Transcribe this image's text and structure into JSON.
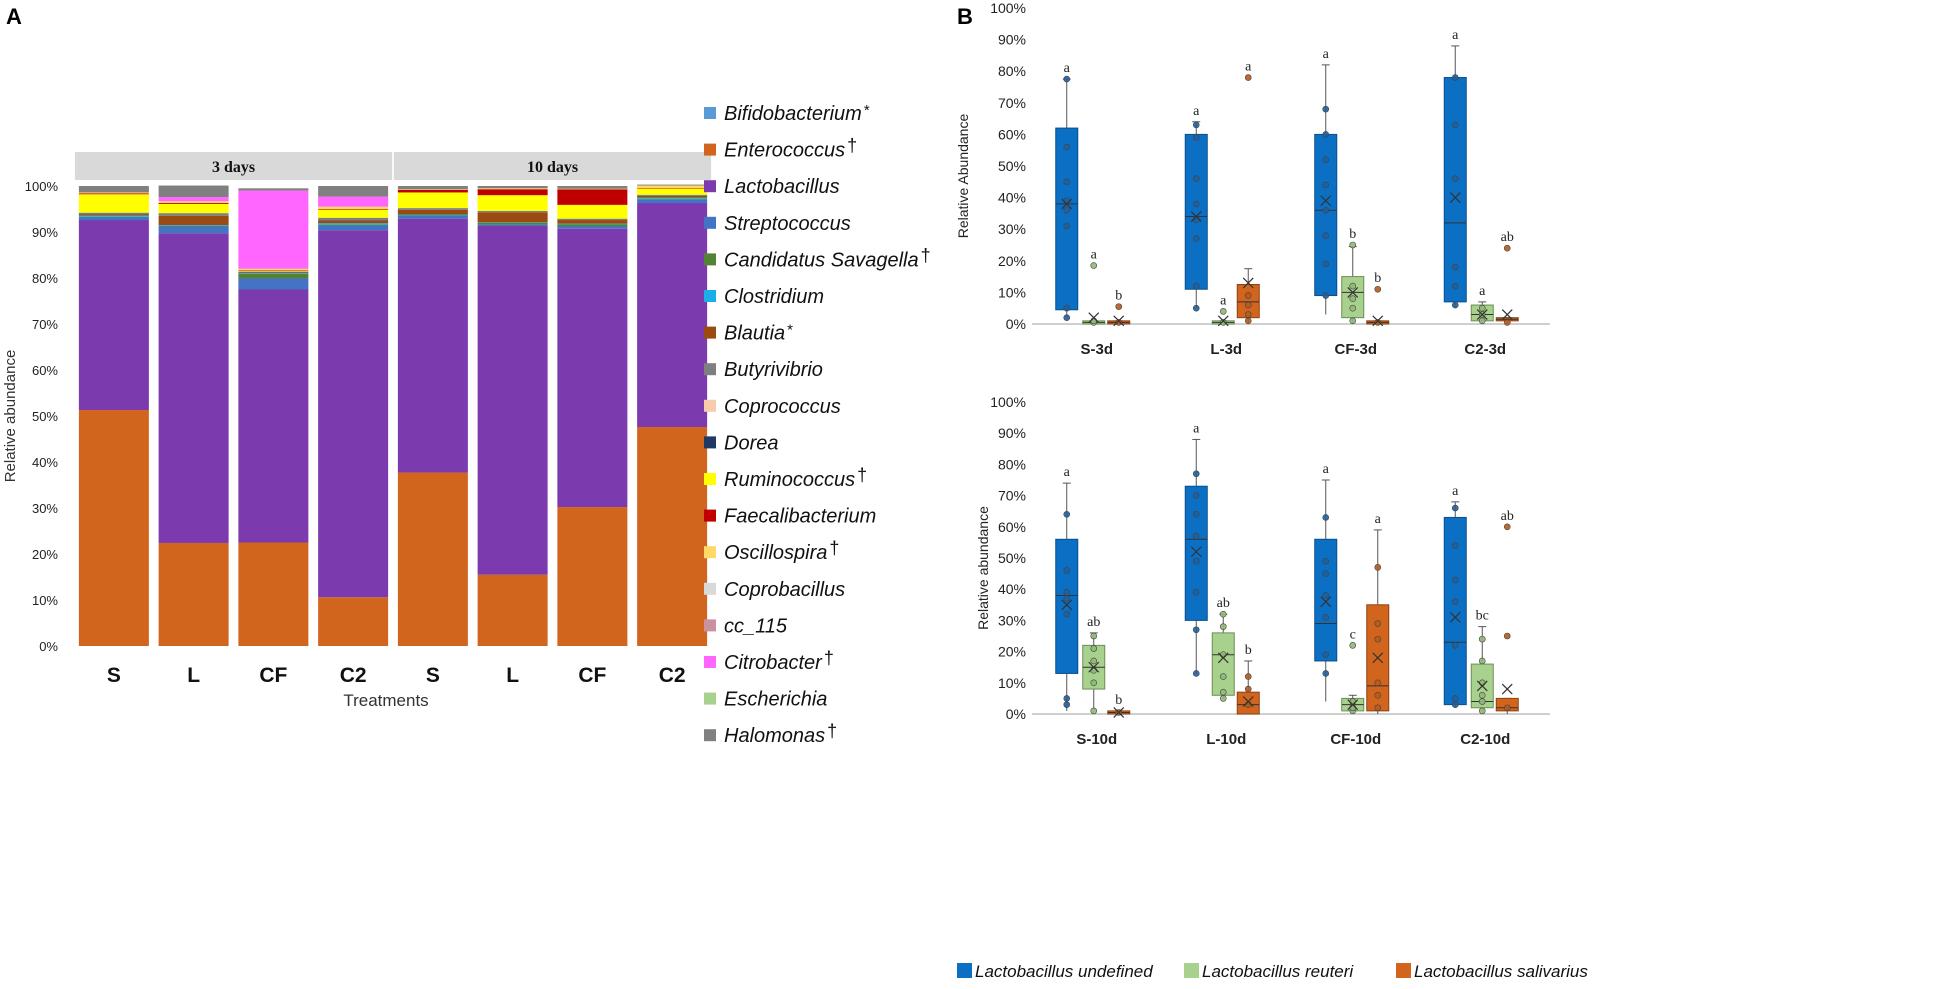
{
  "panels": {
    "a_label": "A",
    "b_label": "B"
  },
  "chart_data": [
    {
      "type": "bar",
      "stacked": true,
      "title": "",
      "xlabel": "Treatments",
      "ylabel": "Relative  abundance",
      "ylim": [
        0,
        100
      ],
      "yticks": [
        "0%",
        "10%",
        "20%",
        "30%",
        "40%",
        "50%",
        "60%",
        "70%",
        "80%",
        "90%",
        "100%"
      ],
      "groups": [
        {
          "label": "3 days",
          "span": [
            0,
            3
          ]
        },
        {
          "label": "10 days",
          "span": [
            4,
            7
          ]
        }
      ],
      "categories": [
        "S",
        "L",
        "CF",
        "C2",
        "S",
        "L",
        "CF",
        "C2"
      ],
      "legend": [
        {
          "name": "Bifidobacterium",
          "mark": "*",
          "color": "#5B9BD5"
        },
        {
          "name": "Enterococcus",
          "mark": "†",
          "color": "#D2651E"
        },
        {
          "name": "Lactobacillus",
          "mark": "",
          "color": "#7B3AAD"
        },
        {
          "name": "Streptococcus",
          "mark": "",
          "color": "#4472C4"
        },
        {
          "name": "Candidatus Savagella",
          "mark": "†",
          "color": "#548235"
        },
        {
          "name": "Clostridium",
          "mark": "",
          "color": "#1BAEE6"
        },
        {
          "name": "Blautia",
          "mark": "*",
          "color": "#9A4B12"
        },
        {
          "name": "Butyrivibrio",
          "mark": "",
          "color": "#7F7F7F"
        },
        {
          "name": "Coprococcus",
          "mark": "",
          "color": "#F8CBAD"
        },
        {
          "name": "Dorea",
          "mark": "",
          "color": "#1F3864"
        },
        {
          "name": "Ruminococcus",
          "mark": "†",
          "color": "#FFFF00"
        },
        {
          "name": "Faecalibacterium",
          "mark": "",
          "color": "#C00000"
        },
        {
          "name": "Oscillospira",
          "mark": "†",
          "color": "#FFD966"
        },
        {
          "name": "Coprobacillus",
          "mark": "",
          "color": "#D9D9D9"
        },
        {
          "name": "cc_115",
          "mark": "",
          "color": "#C9929E"
        },
        {
          "name": "Citrobacter",
          "mark": "†",
          "color": "#FF66FF"
        },
        {
          "name": "Escherichia",
          "mark": "",
          "color": "#A9D18E"
        },
        {
          "name": "Halomonas",
          "mark": "†",
          "color": "#808080"
        }
      ],
      "series": [
        {
          "name": "Enterococcus",
          "values": [
            51.3,
            22.4,
            22.5,
            10.6,
            37.7,
            15.5,
            30.2,
            47.6
          ]
        },
        {
          "name": "Lactobacillus",
          "values": [
            41.3,
            67.3,
            55.0,
            79.8,
            55.2,
            75.8,
            60.5,
            48.7
          ]
        },
        {
          "name": "Streptococcus",
          "values": [
            0.6,
            1.5,
            2.4,
            1.0,
            0.6,
            0.3,
            0.5,
            0.7
          ]
        },
        {
          "name": "Candidatus Savagella",
          "values": [
            0.1,
            0.1,
            1.0,
            0.2,
            0.1,
            0.4,
            0.5,
            0.2
          ]
        },
        {
          "name": "Clostridium",
          "values": [
            0.3,
            0.2,
            0.2,
            0.3,
            0.2,
            0.1,
            0.1,
            0.3
          ]
        },
        {
          "name": "Blautia",
          "values": [
            0.3,
            2.0,
            0.2,
            0.6,
            1.0,
            2.2,
            0.8,
            0.4
          ]
        },
        {
          "name": "Butyrivibrio",
          "values": [
            0.3,
            0.6,
            0.1,
            0.6,
            0.4,
            0.3,
            0.3,
            0.2
          ]
        },
        {
          "name": "Ruminococcus",
          "values": [
            4.0,
            2.0,
            0.2,
            1.8,
            3.4,
            3.4,
            3.0,
            1.4
          ]
        },
        {
          "name": "Faecalibacterium",
          "values": [
            0.2,
            0.2,
            0.1,
            0.1,
            0.6,
            1.3,
            3.4,
            0.1
          ]
        },
        {
          "name": "Oscillospira",
          "values": [
            0.2,
            0.4,
            0.3,
            0.5,
            0.1,
            0.2,
            0.1,
            0.5
          ]
        },
        {
          "name": "Citrobacter",
          "values": [
            0.0,
            0.9,
            17.0,
            2.2,
            0.0,
            0.0,
            0.0,
            0.0
          ]
        },
        {
          "name": "Halomonas",
          "values": [
            1.4,
            2.5,
            0.5,
            2.3,
            0.7,
            0.5,
            0.6,
            0.2
          ]
        }
      ]
    },
    {
      "type": "box",
      "ylabel": "Relative Abundance",
      "ylim": [
        0,
        100
      ],
      "yticks": [
        "0%",
        "10%",
        "20%",
        "30%",
        "40%",
        "50%",
        "60%",
        "70%",
        "80%",
        "90%",
        "100%"
      ],
      "categories": [
        "S-3d",
        "L-3d",
        "CF-3d",
        "C2-3d"
      ],
      "groups": [
        {
          "label": "S-3d",
          "boxes": [
            {
              "series": "Lactobacillus undefined",
              "min": 2,
              "q1": 4.5,
              "median": 38,
              "mean": 38,
              "q3": 62,
              "max": 77.5,
              "whisker_top": 77.5,
              "points": [
                2,
                5,
                31,
                36,
                39,
                45,
                56,
                77.5
              ],
              "letter": "a"
            },
            {
              "series": "Lactobacillus reuteri",
              "min": 0,
              "q1": 0,
              "median": 0.5,
              "mean": 2,
              "q3": 1,
              "max": 1,
              "whisker_top": 1,
              "points": [
                0.5,
                1,
                18.5
              ],
              "letter": "a"
            },
            {
              "series": "Lactobacillus salivarius",
              "min": 0,
              "q1": 0,
              "median": 0.5,
              "mean": 1,
              "q3": 1,
              "max": 1,
              "whisker_top": 1,
              "points": [
                0.5,
                5.5
              ],
              "letter": "b"
            }
          ]
        },
        {
          "label": "L-3d",
          "boxes": [
            {
              "series": "Lactobacillus undefined",
              "min": 5,
              "q1": 11,
              "median": 34,
              "mean": 34,
              "q3": 60,
              "max": 64,
              "whisker_top": 64,
              "points": [
                5,
                12,
                27,
                33,
                38,
                46,
                59,
                63
              ],
              "letter": "a"
            },
            {
              "series": "Lactobacillus reuteri",
              "min": 0,
              "q1": 0,
              "median": 0.5,
              "mean": 1,
              "q3": 1,
              "max": 1,
              "whisker_top": 1,
              "points": [
                0.5,
                4
              ],
              "letter": "a"
            },
            {
              "series": "Lactobacillus salivarius",
              "min": 0,
              "q1": 2,
              "median": 7,
              "mean": 13,
              "q3": 12.5,
              "max": 17.5,
              "whisker_top": 17.5,
              "points": [
                1,
                3,
                6,
                9,
                78
              ],
              "letter": "a"
            }
          ]
        },
        {
          "label": "CF-3d",
          "boxes": [
            {
              "series": "Lactobacillus undefined",
              "min": 3,
              "q1": 9,
              "median": 36,
              "mean": 39,
              "q3": 60,
              "max": 82,
              "whisker_top": 82,
              "points": [
                9,
                19,
                28,
                36,
                44,
                52,
                60,
                68
              ],
              "letter": "a"
            },
            {
              "series": "Lactobacillus reuteri",
              "min": 0,
              "q1": 2,
              "median": 10,
              "mean": 10,
              "q3": 15,
              "max": 24.5,
              "whisker_top": 24.5,
              "points": [
                1,
                5,
                8,
                12,
                25
              ],
              "letter": "b"
            },
            {
              "series": "Lactobacillus salivarius",
              "min": 0,
              "q1": 0,
              "median": 0.5,
              "mean": 1,
              "q3": 1,
              "max": 1,
              "whisker_top": 1,
              "points": [
                0.5,
                11
              ],
              "letter": "b"
            }
          ]
        },
        {
          "label": "C2-3d",
          "boxes": [
            {
              "series": "Lactobacillus undefined",
              "min": 5,
              "q1": 7,
              "median": 32,
              "mean": 40,
              "q3": 78,
              "max": 88,
              "whisker_top": 88,
              "points": [
                6,
                12,
                18,
                46,
                63,
                78
              ],
              "letter": "a"
            },
            {
              "series": "Lactobacillus reuteri",
              "min": 0,
              "q1": 1,
              "median": 3,
              "mean": 3,
              "q3": 6,
              "max": 7,
              "whisker_top": 7,
              "points": [
                1,
                3,
                5
              ],
              "letter": "a"
            },
            {
              "series": "Lactobacillus salivarius",
              "min": 0,
              "q1": 1,
              "median": 1.5,
              "mean": 3,
              "q3": 2,
              "max": 2,
              "whisker_top": 2,
              "points": [
                0.5,
                24
              ],
              "letter": "ab"
            }
          ]
        }
      ]
    },
    {
      "type": "box",
      "ylabel": "Relative abundance",
      "ylim": [
        0,
        100
      ],
      "yticks": [
        "0%",
        "10%",
        "20%",
        "30%",
        "40%",
        "50%",
        "60%",
        "70%",
        "80%",
        "90%",
        "100%"
      ],
      "categories": [
        "S-10d",
        "L-10d",
        "CF-10d",
        "C2-10d"
      ],
      "groups": [
        {
          "label": "S-10d",
          "boxes": [
            {
              "series": "Lactobacillus undefined",
              "min": 1,
              "q1": 13,
              "median": 38,
              "mean": 35,
              "q3": 56,
              "max": 74,
              "whisker_top": 74,
              "points": [
                3,
                5,
                32,
                37,
                39,
                46,
                64
              ],
              "letter": "a"
            },
            {
              "series": "Lactobacillus reuteri",
              "min": 1,
              "q1": 8,
              "median": 15,
              "mean": 15,
              "q3": 22,
              "max": 26,
              "whisker_top": 26,
              "points": [
                1,
                10,
                14,
                17,
                21,
                25
              ],
              "letter": "ab"
            },
            {
              "series": "Lactobacillus salivarius",
              "min": 0,
              "q1": 0,
              "median": 0.5,
              "mean": 0.5,
              "q3": 1,
              "max": 1,
              "whisker_top": 1,
              "points": [
                0.5
              ],
              "letter": "b"
            }
          ]
        },
        {
          "label": "L-10d",
          "boxes": [
            {
              "series": "Lactobacillus undefined",
              "min": 13,
              "q1": 30,
              "median": 56,
              "mean": 52,
              "q3": 73,
              "max": 88,
              "whisker_top": 88,
              "points": [
                13,
                27,
                39,
                49,
                57,
                64,
                70,
                77
              ],
              "letter": "a"
            },
            {
              "series": "Lactobacillus reuteri",
              "min": 5,
              "q1": 6,
              "median": 19,
              "mean": 18,
              "q3": 26,
              "max": 32,
              "whisker_top": 32,
              "points": [
                5,
                7,
                12,
                19,
                28,
                32
              ],
              "letter": "ab"
            },
            {
              "series": "Lactobacillus salivarius",
              "min": 0,
              "q1": 0,
              "median": 3,
              "mean": 4,
              "q3": 7,
              "max": 17,
              "whisker_top": 17,
              "points": [
                3,
                8,
                12
              ],
              "letter": "b"
            }
          ]
        },
        {
          "label": "CF-10d",
          "boxes": [
            {
              "series": "Lactobacillus undefined",
              "min": 4,
              "q1": 17,
              "median": 29,
              "mean": 36,
              "q3": 56,
              "max": 75,
              "whisker_top": 75,
              "points": [
                13,
                19,
                31,
                38,
                45,
                49,
                63
              ],
              "letter": "a"
            },
            {
              "series": "Lactobacillus reuteri",
              "min": 0,
              "q1": 1,
              "median": 3,
              "mean": 3,
              "q3": 5,
              "max": 6,
              "whisker_top": 6,
              "points": [
                1,
                2,
                4,
                22
              ],
              "letter": "c"
            },
            {
              "series": "Lactobacillus salivarius",
              "min": 0,
              "q1": 1,
              "median": 9,
              "mean": 18,
              "q3": 35,
              "max": 59,
              "whisker_top": 59,
              "points": [
                2,
                6,
                10,
                24,
                29,
                47
              ],
              "letter": "a"
            }
          ]
        },
        {
          "label": "C2-10d",
          "boxes": [
            {
              "series": "Lactobacillus undefined",
              "min": 2,
              "q1": 3,
              "median": 23,
              "mean": 31,
              "q3": 63,
              "max": 68,
              "whisker_top": 68,
              "points": [
                3,
                5,
                22,
                36,
                43,
                54,
                66
              ],
              "letter": "a"
            },
            {
              "series": "Lactobacillus reuteri",
              "min": 1,
              "q1": 2,
              "median": 4,
              "mean": 9,
              "q3": 16,
              "max": 28,
              "whisker_top": 28,
              "points": [
                1,
                4,
                6,
                10,
                17,
                24
              ],
              "letter": "bc"
            },
            {
              "series": "Lactobacillus salivarius",
              "min": 0,
              "q1": 1,
              "median": 2,
              "mean": 8,
              "q3": 5,
              "max": 5,
              "whisker_top": 5,
              "points": [
                2,
                25,
                60
              ],
              "letter": "ab"
            }
          ]
        }
      ]
    }
  ],
  "box_legend": [
    {
      "name": "Lactobacillus undefined",
      "color": "#0B6FC4",
      "stroke": "#0B4F8C"
    },
    {
      "name": "Lactobacillus reuteri",
      "color": "#A9D18E",
      "stroke": "#6A8E55"
    },
    {
      "name": "Lactobacillus salivarius",
      "color": "#D2651E",
      "stroke": "#8E4212"
    }
  ]
}
